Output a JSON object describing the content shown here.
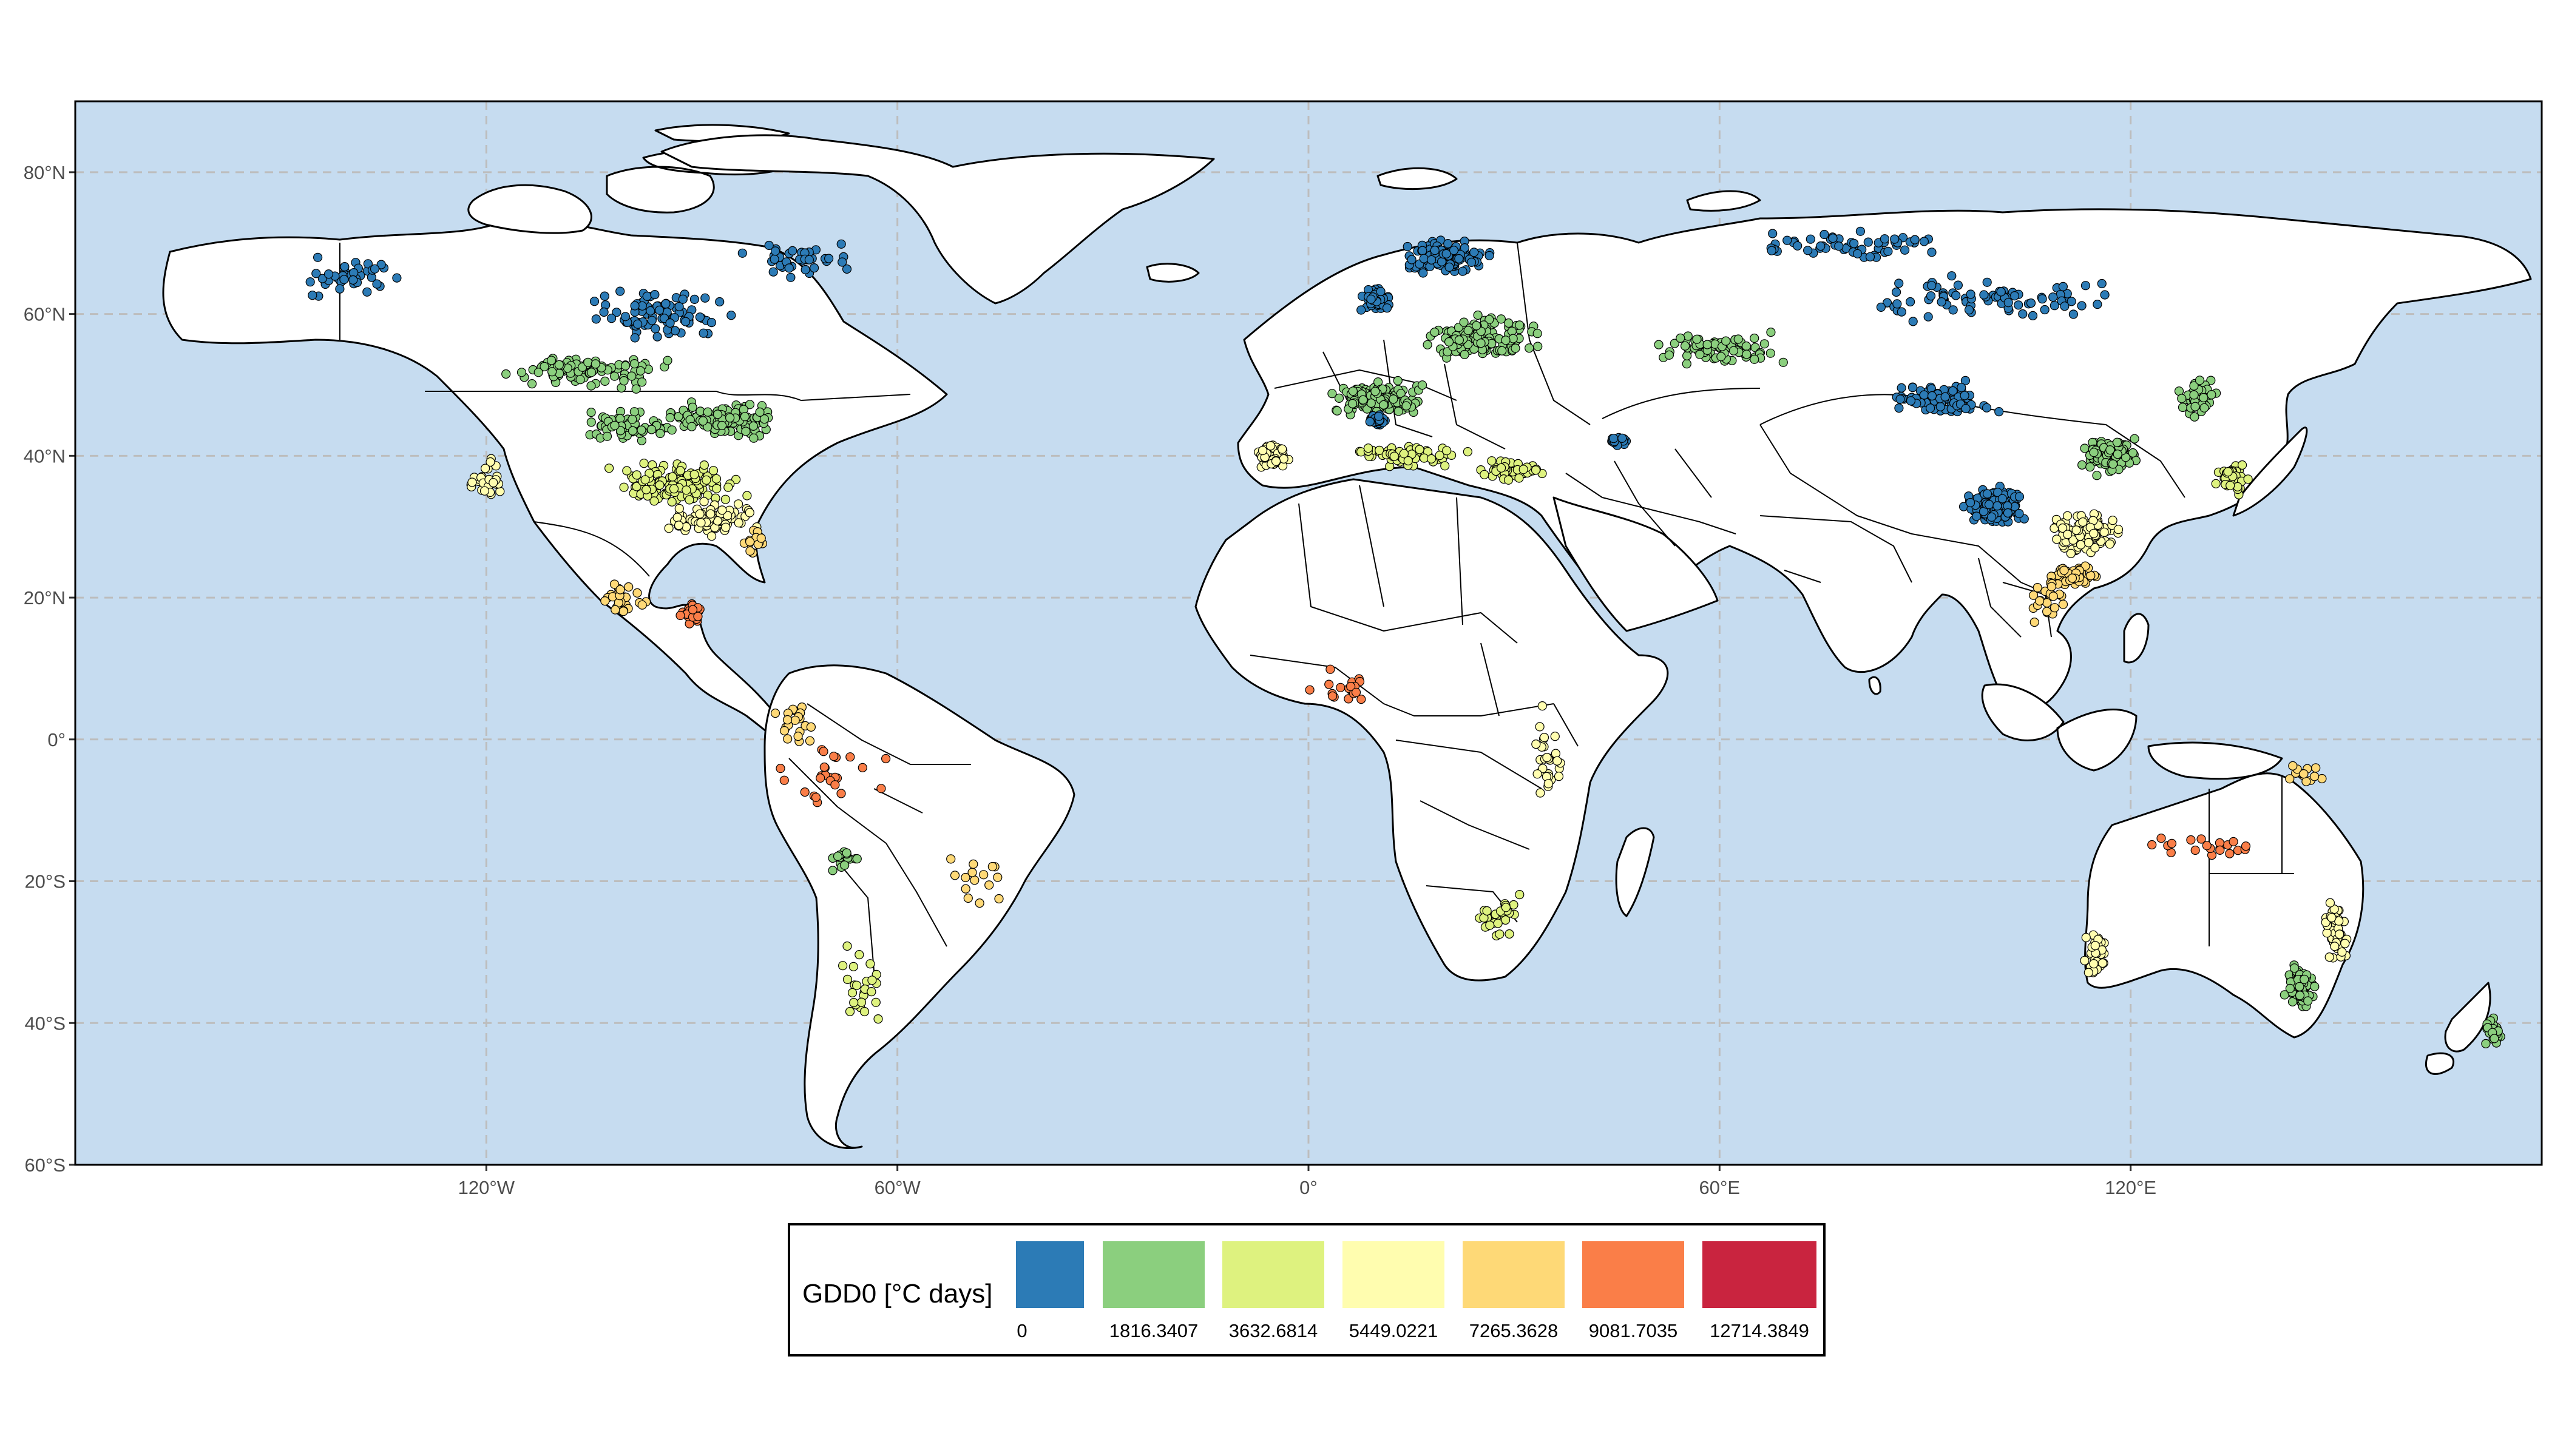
{
  "map": {
    "lat_ticks": [
      "80°N",
      "60°N",
      "40°N",
      "20°N",
      "0°",
      "20°S",
      "40°S",
      "60°S"
    ],
    "lon_ticks": [
      "120°W",
      "60°W",
      "0°",
      "60°E",
      "120°E"
    ],
    "ocean_color": "#c6dcf0",
    "land_color": "#ffffff",
    "grid": true
  },
  "legend": {
    "title": "GDD0 [°C days]",
    "bins": [
      {
        "color": "#2c7bb6",
        "label": "0"
      },
      {
        "color": "#8bcf7e",
        "label": "1816.3407"
      },
      {
        "color": "#def27f",
        "label": "3632.6814"
      },
      {
        "color": "#fffdaf",
        "label": "5449.0221"
      },
      {
        "color": "#fed977",
        "label": "7265.3628"
      },
      {
        "color": "#fa7e48",
        "label": "9081.7035"
      },
      {
        "color": "#c9243f",
        "label": "12714.3849"
      }
    ]
  },
  "point_clusters": [
    {
      "lon": -140,
      "lat": 65,
      "sx": 15,
      "sy": 4,
      "n": 40,
      "bin": 0
    },
    {
      "lon": -95,
      "lat": 60,
      "sx": 12,
      "sy": 4,
      "n": 90,
      "bin": 0
    },
    {
      "lon": -75,
      "lat": 68,
      "sx": 10,
      "sy": 3,
      "n": 40,
      "bin": 0
    },
    {
      "lon": -105,
      "lat": 52,
      "sx": 14,
      "sy": 3,
      "n": 100,
      "bin": 1
    },
    {
      "lon": -85,
      "lat": 45,
      "sx": 10,
      "sy": 3,
      "n": 120,
      "bin": 1
    },
    {
      "lon": -100,
      "lat": 44,
      "sx": 10,
      "sy": 3,
      "n": 60,
      "bin": 1
    },
    {
      "lon": -92,
      "lat": 36,
      "sx": 12,
      "sy": 4,
      "n": 120,
      "bin": 2
    },
    {
      "lon": -87,
      "lat": 31,
      "sx": 8,
      "sy": 3,
      "n": 80,
      "bin": 3
    },
    {
      "lon": -81,
      "lat": 28,
      "sx": 2,
      "sy": 2,
      "n": 15,
      "bin": 4
    },
    {
      "lon": -120,
      "lat": 37,
      "sx": 3,
      "sy": 4,
      "n": 30,
      "bin": 3
    },
    {
      "lon": -100,
      "lat": 20,
      "sx": 4,
      "sy": 3,
      "n": 25,
      "bin": 4
    },
    {
      "lon": -90,
      "lat": 18,
      "sx": 2,
      "sy": 2,
      "n": 35,
      "bin": 5
    },
    {
      "lon": -75,
      "lat": 2,
      "sx": 4,
      "sy": 5,
      "n": 20,
      "bin": 4
    },
    {
      "lon": -70,
      "lat": -5,
      "sx": 10,
      "sy": 6,
      "n": 25,
      "bin": 5
    },
    {
      "lon": -68,
      "lat": -17,
      "sx": 3,
      "sy": 3,
      "n": 20,
      "bin": 1
    },
    {
      "lon": -65,
      "lat": -35,
      "sx": 5,
      "sy": 8,
      "n": 25,
      "bin": 2
    },
    {
      "lon": -48,
      "lat": -20,
      "sx": 5,
      "sy": 5,
      "n": 15,
      "bin": 4
    },
    {
      "lon": 20,
      "lat": 68,
      "sx": 8,
      "sy": 3,
      "n": 120,
      "bin": 0
    },
    {
      "lon": 10,
      "lat": 62,
      "sx": 3,
      "sy": 2,
      "n": 60,
      "bin": 0
    },
    {
      "lon": 25,
      "lat": 57,
      "sx": 10,
      "sy": 4,
      "n": 130,
      "bin": 1
    },
    {
      "lon": 10,
      "lat": 48,
      "sx": 8,
      "sy": 3,
      "n": 150,
      "bin": 1
    },
    {
      "lon": 10,
      "lat": 45,
      "sx": 2,
      "sy": 1,
      "n": 40,
      "bin": 0
    },
    {
      "lon": -5,
      "lat": 40,
      "sx": 3,
      "sy": 2,
      "n": 70,
      "bin": 3
    },
    {
      "lon": 15,
      "lat": 40,
      "sx": 10,
      "sy": 2,
      "n": 70,
      "bin": 2
    },
    {
      "lon": 30,
      "lat": 38,
      "sx": 6,
      "sy": 2,
      "n": 40,
      "bin": 2
    },
    {
      "lon": 45,
      "lat": 42,
      "sx": 2,
      "sy": 1,
      "n": 25,
      "bin": 0
    },
    {
      "lon": 60,
      "lat": 55,
      "sx": 12,
      "sy": 3,
      "n": 80,
      "bin": 1
    },
    {
      "lon": 80,
      "lat": 70,
      "sx": 20,
      "sy": 3,
      "n": 60,
      "bin": 0
    },
    {
      "lon": 100,
      "lat": 62,
      "sx": 25,
      "sy": 4,
      "n": 80,
      "bin": 0
    },
    {
      "lon": 92,
      "lat": 48,
      "sx": 10,
      "sy": 3,
      "n": 80,
      "bin": 0
    },
    {
      "lon": 100,
      "lat": 33,
      "sx": 5,
      "sy": 3,
      "n": 250,
      "bin": 0
    },
    {
      "lon": 117,
      "lat": 40,
      "sx": 5,
      "sy": 3,
      "n": 120,
      "bin": 1
    },
    {
      "lon": 113,
      "lat": 29,
      "sx": 6,
      "sy": 4,
      "n": 110,
      "bin": 3
    },
    {
      "lon": 112,
      "lat": 23,
      "sx": 4,
      "sy": 2,
      "n": 60,
      "bin": 4
    },
    {
      "lon": 135,
      "lat": 37,
      "sx": 3,
      "sy": 3,
      "n": 50,
      "bin": 2
    },
    {
      "lon": 130,
      "lat": 48,
      "sx": 4,
      "sy": 4,
      "n": 50,
      "bin": 1
    },
    {
      "lon": 35,
      "lat": -3,
      "sx": 3,
      "sy": 8,
      "n": 30,
      "bin": 3
    },
    {
      "lon": 28,
      "lat": -25,
      "sx": 5,
      "sy": 4,
      "n": 30,
      "bin": 2
    },
    {
      "lon": 5,
      "lat": 7,
      "sx": 6,
      "sy": 3,
      "n": 20,
      "bin": 5
    },
    {
      "lon": 115,
      "lat": -30,
      "sx": 2,
      "sy": 4,
      "n": 40,
      "bin": 3
    },
    {
      "lon": 145,
      "lat": -35,
      "sx": 3,
      "sy": 4,
      "n": 80,
      "bin": 1
    },
    {
      "lon": 150,
      "lat": -27,
      "sx": 2,
      "sy": 5,
      "n": 50,
      "bin": 3
    },
    {
      "lon": 130,
      "lat": -15,
      "sx": 10,
      "sy": 3,
      "n": 20,
      "bin": 5
    },
    {
      "lon": 173,
      "lat": -41,
      "sx": 2,
      "sy": 3,
      "n": 20,
      "bin": 1
    },
    {
      "lon": 145,
      "lat": -5,
      "sx": 4,
      "sy": 2,
      "n": 15,
      "bin": 4
    },
    {
      "lon": 108,
      "lat": 20,
      "sx": 4,
      "sy": 5,
      "n": 25,
      "bin": 4
    }
  ]
}
